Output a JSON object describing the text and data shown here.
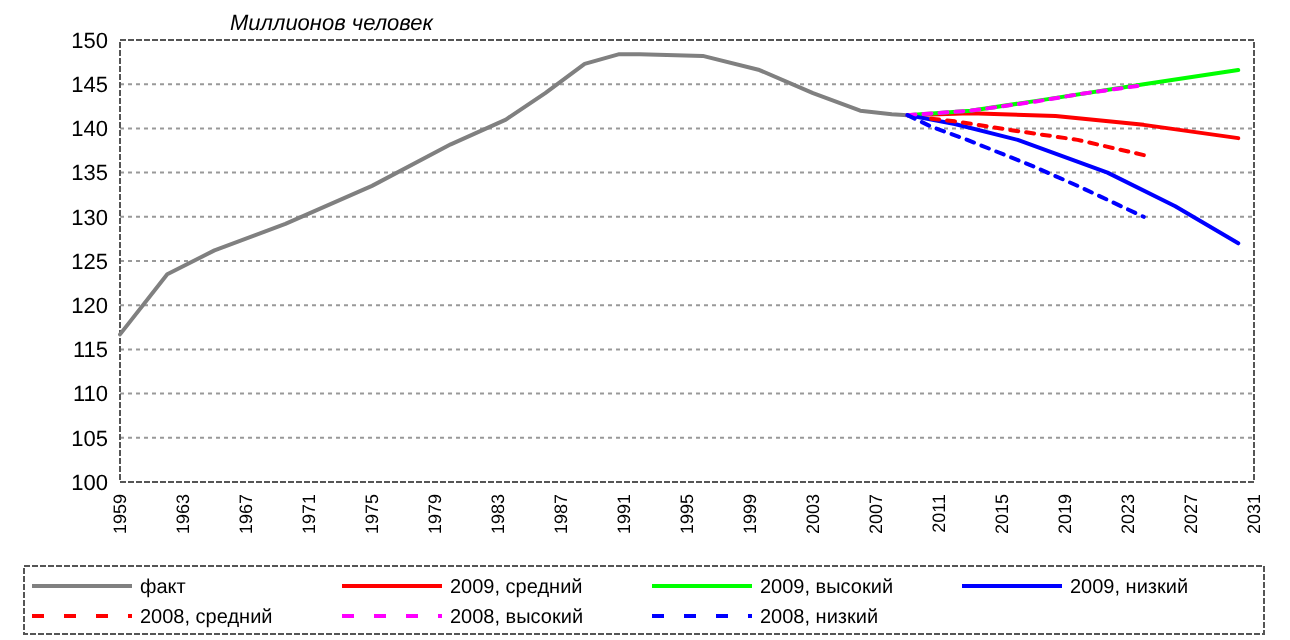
{
  "chart_data": {
    "type": "line",
    "ylabel": "Миллионов человек",
    "xlim": [
      1959,
      2031
    ],
    "xticks": [
      1959,
      1963,
      1967,
      1971,
      1975,
      1979,
      1983,
      1987,
      1991,
      1995,
      1999,
      2003,
      2007,
      2011,
      2015,
      2019,
      2023,
      2027,
      2031
    ],
    "ylim": [
      100,
      150
    ],
    "yticks": [
      100,
      105,
      110,
      115,
      120,
      125,
      130,
      135,
      140,
      145,
      150
    ],
    "grid": "y",
    "legend": "bottom",
    "series": [
      {
        "name": "факт",
        "color": "#808080",
        "line_style": "solid",
        "x": [
          1959,
          1962,
          1965,
          1969.5,
          1975,
          1980,
          1983.5,
          1986,
          1988.5,
          1990.7,
          1992,
          1996,
          1999.6,
          2003,
          2006,
          2008,
          2009
        ],
        "values": [
          116.7,
          123.5,
          126.2,
          129.2,
          133.5,
          138.2,
          141,
          144,
          147.3,
          148.4,
          148.4,
          148.2,
          146.6,
          144,
          142,
          141.6,
          141.5
        ]
      },
      {
        "name": "2009, средний",
        "color": "#ff0000",
        "line_style": "solid",
        "x": [
          2009,
          2013,
          2018.4,
          2024,
          2030
        ],
        "values": [
          141.5,
          141.7,
          141.4,
          140.4,
          138.9
        ]
      },
      {
        "name": "2009, высокий",
        "color": "#00ff00",
        "line_style": "solid",
        "x": [
          2009,
          2013,
          2017.5,
          2024,
          2030
        ],
        "values": [
          141.5,
          142,
          143.2,
          145,
          146.6
        ]
      },
      {
        "name": "2009, низкий",
        "color": "#0000ff",
        "line_style": "solid",
        "x": [
          2009,
          2012,
          2016,
          2021.7,
          2026,
          2030
        ],
        "values": [
          141.5,
          140.5,
          138.7,
          135,
          131.2,
          127
        ]
      },
      {
        "name": "2008, средний",
        "color": "#ff0000",
        "line_style": "dashed",
        "x": [
          2010.5,
          2012,
          2015.6,
          2019.8,
          2024.2
        ],
        "values": [
          141.1,
          140.8,
          139.8,
          138.7,
          136.9
        ]
      },
      {
        "name": "2008, высокий",
        "color": "#ff00ff",
        "line_style": "dashed",
        "x": [
          2009,
          2013,
          2017,
          2020,
          2023.6
        ],
        "values": [
          141.5,
          142,
          143,
          143.9,
          144.8
        ]
      },
      {
        "name": "2008, низкий",
        "color": "#0000ff",
        "line_style": "dashed",
        "x": [
          2009,
          2010.5,
          2012.8,
          2017,
          2019.8,
          2024
        ],
        "values": [
          141.5,
          140.2,
          138.7,
          135.7,
          133.5,
          130
        ]
      }
    ]
  }
}
